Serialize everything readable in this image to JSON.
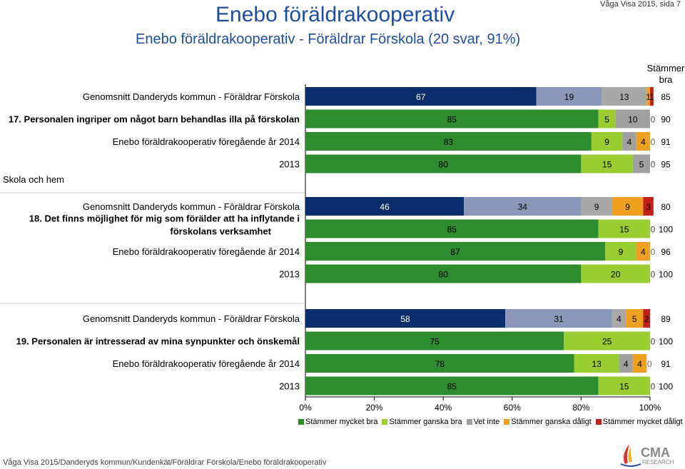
{
  "header": {
    "title": "Enebo föräldrakooperativ",
    "subtitle": "Enebo föräldrakooperativ - Föräldrar Förskola (20 svar, 91%)",
    "page_info": "Våga Visa 2015, sida 7"
  },
  "stammer_bra_header": "Stämmer bra",
  "side_label": "Skola och hem",
  "footer": "Våga Visa 2015/Danderyds kommun/Kundenkät/Föräldrar Förskola/Enebo föräldrakooperativ",
  "logo": {
    "text_main": "CMA",
    "text_sub": "RESEARCH"
  },
  "colors": {
    "mycket_bra": "#2e8b2e",
    "ganska_bra": "#9acd32",
    "vet_inte": "#a0a0a0",
    "ganska_daligt": "#f0a020",
    "mycket_daligt": "#c0201a",
    "kommun_1": "#0b2d6b",
    "kommun_2": "#8b96b8",
    "kommun_3": "#a8a8a8"
  },
  "chart_data": {
    "type": "bar",
    "orientation": "horizontal-stacked",
    "x_ticks": [
      "0%",
      "20%",
      "40%",
      "60%",
      "80%",
      "100%"
    ],
    "xlim": [
      0,
      100
    ],
    "legend": [
      "Stämmer mycket bra",
      "Stämmer ganska bra",
      "Vet inte",
      "Stämmer ganska dåligt",
      "Stämmer mycket dåligt"
    ],
    "legend_position": "bottom",
    "groups": [
      {
        "question": "17. Personalen ingriper om något barn behandlas illa på förskolan",
        "rows": [
          {
            "label": "Genomsnitt Danderyds kommun - Föräldrar Förskola",
            "kind": "kommun",
            "values": [
              67,
              19,
              13,
              1,
              1
            ],
            "stammer_bra": "85"
          },
          {
            "label": "",
            "kind": "current",
            "values": [
              85,
              5,
              10,
              0,
              0
            ],
            "stammer_bra": "90"
          },
          {
            "label": "Enebo föräldrakooperativ föregående år 2014",
            "kind": "prev",
            "values": [
              83,
              9,
              4,
              4,
              0
            ],
            "stammer_bra": "91"
          },
          {
            "label": "2013",
            "kind": "prev",
            "values": [
              80,
              15,
              5,
              0,
              0
            ],
            "stammer_bra": "95"
          }
        ]
      },
      {
        "question": "18. Det finns möjlighet för mig som förälder att ha inflytande i förskolans verksamhet",
        "rows": [
          {
            "label": "Genomsnitt Danderyds kommun - Föräldrar Förskola",
            "kind": "kommun",
            "values": [
              46,
              34,
              9,
              9,
              3
            ],
            "stammer_bra": "80"
          },
          {
            "label": "",
            "kind": "current",
            "values": [
              85,
              15,
              0,
              0,
              0
            ],
            "stammer_bra": "100"
          },
          {
            "label": "Enebo föräldrakooperativ föregående år 2014",
            "kind": "prev",
            "values": [
              87,
              9,
              0,
              4,
              0
            ],
            "stammer_bra": "96"
          },
          {
            "label": "2013",
            "kind": "prev",
            "values": [
              80,
              20,
              0,
              0,
              0
            ],
            "stammer_bra": "100"
          }
        ]
      },
      {
        "question": "19. Personalen är intresserad av mina synpunkter och önskemål",
        "rows": [
          {
            "label": "Genomsnitt Danderyds kommun - Föräldrar Förskola",
            "kind": "kommun",
            "values": [
              58,
              31,
              4,
              5,
              2
            ],
            "stammer_bra": "89"
          },
          {
            "label": "",
            "kind": "current",
            "values": [
              75,
              25,
              0,
              0,
              0
            ],
            "stammer_bra": "100"
          },
          {
            "label": "Enebo föräldrakooperativ föregående år 2014",
            "kind": "prev",
            "values": [
              78,
              13,
              4,
              4,
              0
            ],
            "stammer_bra": "91"
          },
          {
            "label": "2013",
            "kind": "prev",
            "values": [
              85,
              15,
              0,
              0,
              0
            ],
            "stammer_bra": "100"
          }
        ]
      }
    ]
  }
}
